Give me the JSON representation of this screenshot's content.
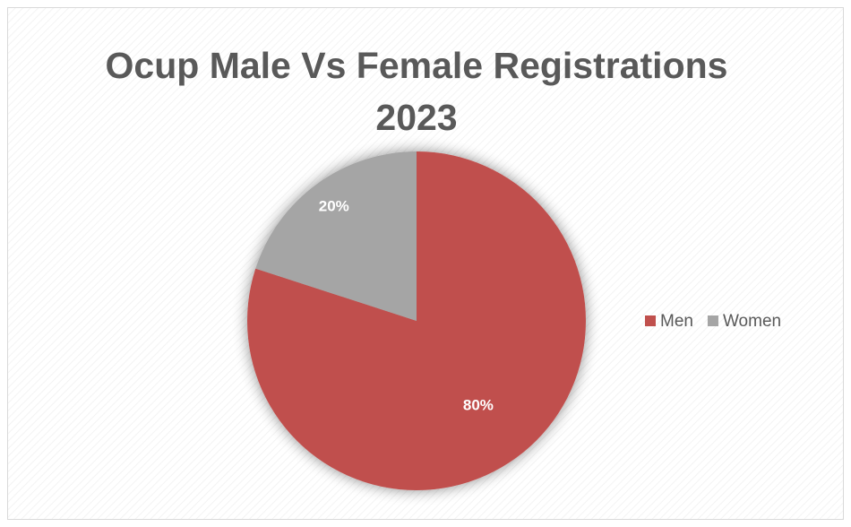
{
  "chart_data": {
    "type": "pie",
    "title": "Ocup Male Vs Female Registrations 2023",
    "categories": [
      "Men",
      "Women"
    ],
    "values": [
      80,
      20
    ],
    "value_labels": [
      "80%",
      "20%"
    ],
    "colors": [
      "#c0504d",
      "#a5a5a5"
    ],
    "legend": "right"
  }
}
